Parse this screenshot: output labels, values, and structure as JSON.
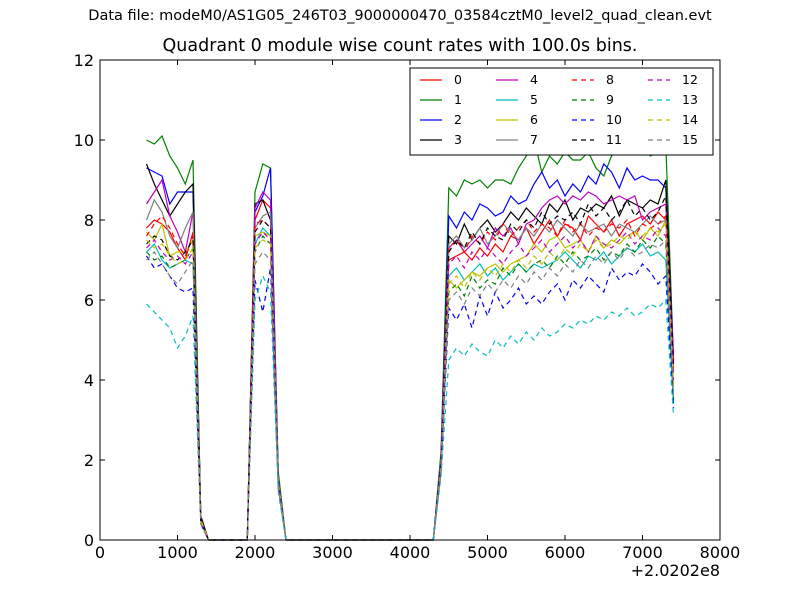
{
  "figure": {
    "suptitle": "Data file: modeM0/AS1G05_246T03_9000000470_03584cztM0_level2_quad_clean.evt",
    "title": "Quadrant 0 module wise count rates with 100.0s bins.",
    "x_offset_label": "+2.0202e8"
  },
  "chart_data": {
    "type": "line",
    "title": "Quadrant 0 module wise count rates with 100.0s bins.",
    "xlabel": "",
    "ylabel": "",
    "xlim": [
      0,
      8000
    ],
    "ylim": [
      0,
      12
    ],
    "x_ticks": [
      "0",
      "1000",
      "2000",
      "3000",
      "4000",
      "5000",
      "6000",
      "7000",
      "8000"
    ],
    "y_ticks": [
      "0",
      "2",
      "4",
      "6",
      "8",
      "10",
      "12"
    ],
    "x_offset": "+2.0202e8",
    "grid": false,
    "legend_position": "top-right",
    "x": [
      600,
      700,
      800,
      900,
      1000,
      1100,
      1200,
      1300,
      1400,
      1500,
      1600,
      1700,
      1800,
      1900,
      2000,
      2100,
      2200,
      2300,
      2400,
      2500,
      2600,
      2700,
      2800,
      2900,
      3000,
      3100,
      3200,
      3300,
      3400,
      3500,
      3600,
      3700,
      3800,
      3900,
      4000,
      4100,
      4200,
      4300,
      4400,
      4500,
      4600,
      4700,
      4800,
      4900,
      5000,
      5100,
      5200,
      5300,
      5400,
      5500,
      5600,
      5700,
      5800,
      5900,
      6000,
      6100,
      6200,
      6300,
      6400,
      6500,
      6600,
      6700,
      6800,
      6900,
      7000,
      7100,
      7200,
      7300,
      7400
    ],
    "series": [
      {
        "name": "0",
        "color": "#ff0000",
        "style": "solid",
        "values": [
          7.8,
          8.0,
          7.9,
          7.7,
          7.3,
          7.0,
          7.7,
          0.6,
          0,
          0,
          0,
          0,
          0,
          0,
          8.0,
          8.5,
          8.3,
          1.5,
          0,
          0,
          0,
          0,
          0,
          0,
          0,
          0,
          0,
          0,
          0,
          0,
          0,
          0,
          0,
          0,
          0,
          0,
          0,
          0,
          1.8,
          7.0,
          7.1,
          7.2,
          7.0,
          7.3,
          7.1,
          7.4,
          7.2,
          7.6,
          7.5,
          7.8,
          7.4,
          7.7,
          8.0,
          7.6,
          7.9,
          7.8,
          7.5,
          8.1,
          7.9,
          7.7,
          8.0,
          7.6,
          7.9,
          8.0,
          8.1,
          7.9,
          8.2,
          8.0,
          4.5
        ]
      },
      {
        "name": "1",
        "color": "#008000",
        "style": "solid",
        "values": [
          10.0,
          9.9,
          10.1,
          9.6,
          9.3,
          8.9,
          9.5,
          0.5,
          0,
          0,
          0,
          0,
          0,
          0,
          8.7,
          9.4,
          9.3,
          1.7,
          0,
          0,
          0,
          0,
          0,
          0,
          0,
          0,
          0,
          0,
          0,
          0,
          0,
          0,
          0,
          0,
          0,
          0,
          0,
          0,
          2.2,
          8.8,
          8.6,
          9.0,
          8.9,
          9.0,
          8.8,
          9.0,
          9.0,
          8.9,
          9.3,
          9.6,
          10.0,
          9.2,
          9.6,
          9.4,
          9.7,
          9.5,
          9.5,
          9.7,
          9.3,
          9.1,
          9.6,
          9.8,
          10.1,
          9.7,
          9.8,
          9.6,
          9.7,
          9.9,
          4.5
        ]
      },
      {
        "name": "2",
        "color": "#0000ff",
        "style": "solid",
        "values": [
          9.3,
          9.2,
          9.1,
          8.4,
          8.7,
          8.7,
          8.7,
          0.5,
          0,
          0,
          0,
          0,
          0,
          0,
          8.2,
          8.6,
          9.3,
          1.5,
          0,
          0,
          0,
          0,
          0,
          0,
          0,
          0,
          0,
          0,
          0,
          0,
          0,
          0,
          0,
          0,
          0,
          0,
          0,
          0,
          2.0,
          8.1,
          7.8,
          8.2,
          8.0,
          8.4,
          8.3,
          8.1,
          8.2,
          8.6,
          8.4,
          8.5,
          8.9,
          9.2,
          8.8,
          9.0,
          8.6,
          8.9,
          8.7,
          9.1,
          8.9,
          9.4,
          9.2,
          8.8,
          9.3,
          9.0,
          9.1,
          9.0,
          9.0,
          8.8,
          4.6
        ]
      },
      {
        "name": "3",
        "color": "#000000",
        "style": "solid",
        "values": [
          9.4,
          8.9,
          8.5,
          8.1,
          8.4,
          8.7,
          8.9,
          0.6,
          0,
          0,
          0,
          0,
          0,
          0,
          8.4,
          8.5,
          8.0,
          1.4,
          0,
          0,
          0,
          0,
          0,
          0,
          0,
          0,
          0,
          0,
          0,
          0,
          0,
          0,
          0,
          0,
          0,
          0,
          0,
          0,
          2.0,
          7.6,
          7.4,
          7.9,
          7.5,
          7.8,
          8.0,
          7.7,
          7.9,
          8.2,
          8.0,
          8.3,
          8.1,
          7.9,
          8.4,
          8.2,
          8.5,
          8.0,
          8.3,
          8.2,
          8.4,
          8.3,
          8.6,
          8.1,
          8.5,
          8.4,
          8.3,
          8.5,
          8.4,
          9.0,
          4.4
        ]
      },
      {
        "name": "4",
        "color": "#bf00bf",
        "style": "solid",
        "values": [
          8.4,
          8.7,
          9.0,
          8.1,
          7.7,
          7.2,
          8.2,
          0.5,
          0,
          0,
          0,
          0,
          0,
          0,
          8.3,
          8.7,
          8.5,
          1.5,
          0,
          0,
          0,
          0,
          0,
          0,
          0,
          0,
          0,
          0,
          0,
          0,
          0,
          0,
          0,
          0,
          0,
          0,
          0,
          0,
          2.0,
          7.3,
          7.5,
          7.2,
          7.4,
          7.6,
          7.3,
          7.8,
          7.6,
          7.8,
          7.4,
          7.9,
          8.0,
          8.3,
          8.5,
          8.6,
          8.4,
          8.6,
          8.5,
          8.7,
          8.6,
          8.4,
          8.5,
          8.6,
          8.5,
          8.6,
          8.0,
          8.2,
          8.3,
          8.4,
          4.5
        ]
      },
      {
        "name": "5",
        "color": "#00bfbf",
        "style": "solid",
        "values": [
          7.2,
          7.4,
          7.0,
          6.8,
          6.9,
          7.0,
          6.9,
          0.5,
          0,
          0,
          0,
          0,
          0,
          0,
          7.4,
          7.8,
          7.6,
          1.4,
          0,
          0,
          0,
          0,
          0,
          0,
          0,
          0,
          0,
          0,
          0,
          0,
          0,
          0,
          0,
          0,
          0,
          0,
          0,
          0,
          1.8,
          6.6,
          6.8,
          6.5,
          6.7,
          6.9,
          6.6,
          6.8,
          6.5,
          6.7,
          6.9,
          6.7,
          6.9,
          6.8,
          6.9,
          7.0,
          7.2,
          7.0,
          6.8,
          7.1,
          7.0,
          7.2,
          6.9,
          7.1,
          7.3,
          7.2,
          7.4,
          7.1,
          7.2,
          7.0,
          3.4
        ]
      },
      {
        "name": "6",
        "color": "#bfbf00",
        "style": "solid",
        "values": [
          7.7,
          7.5,
          7.9,
          7.1,
          7.2,
          7.2,
          7.5,
          0.5,
          0,
          0,
          0,
          0,
          0,
          0,
          7.6,
          7.7,
          7.6,
          1.4,
          0,
          0,
          0,
          0,
          0,
          0,
          0,
          0,
          0,
          0,
          0,
          0,
          0,
          0,
          0,
          0,
          0,
          0,
          0,
          0,
          1.8,
          6.5,
          6.3,
          6.5,
          6.7,
          6.6,
          6.8,
          6.9,
          6.7,
          6.9,
          7.0,
          7.1,
          7.4,
          7.2,
          7.5,
          7.6,
          7.3,
          7.4,
          7.5,
          7.2,
          7.6,
          7.3,
          7.5,
          7.4,
          7.6,
          7.7,
          7.5,
          7.8,
          7.6,
          8.0,
          3.9
        ]
      },
      {
        "name": "7",
        "color": "#808080",
        "style": "solid",
        "values": [
          8.0,
          8.5,
          8.2,
          7.6,
          7.3,
          7.8,
          8.2,
          0.5,
          0,
          0,
          0,
          0,
          0,
          0,
          7.8,
          8.1,
          8.2,
          1.4,
          0,
          0,
          0,
          0,
          0,
          0,
          0,
          0,
          0,
          0,
          0,
          0,
          0,
          0,
          0,
          0,
          0,
          0,
          0,
          0,
          1.9,
          7.4,
          7.6,
          7.3,
          7.5,
          7.8,
          7.4,
          7.6,
          7.9,
          7.7,
          7.5,
          7.8,
          7.6,
          7.9,
          7.7,
          8.0,
          7.8,
          7.6,
          7.9,
          7.7,
          7.8,
          7.9,
          7.6,
          7.9,
          7.8,
          7.7,
          7.9,
          8.1,
          7.9,
          8.0,
          4.2
        ]
      },
      {
        "name": "8",
        "color": "#ff0000",
        "style": "dashed",
        "values": [
          7.6,
          7.9,
          8.1,
          7.8,
          7.4,
          7.1,
          7.6,
          0.5,
          0,
          0,
          0,
          0,
          0,
          0,
          7.9,
          8.0,
          7.8,
          1.4,
          0,
          0,
          0,
          0,
          0,
          0,
          0,
          0,
          0,
          0,
          0,
          0,
          0,
          0,
          0,
          0,
          0,
          0,
          0,
          0,
          1.8,
          7.3,
          7.5,
          7.2,
          7.6,
          7.4,
          7.7,
          7.5,
          7.9,
          7.6,
          7.8,
          8.0,
          7.7,
          7.9,
          7.8,
          7.6,
          8.0,
          7.7,
          7.9,
          7.6,
          7.8,
          7.7,
          7.9,
          7.8,
          8.0,
          7.6,
          7.9,
          7.8,
          7.9,
          8.1,
          4.3
        ]
      },
      {
        "name": "9",
        "color": "#008000",
        "style": "dashed",
        "values": [
          7.2,
          7.0,
          7.1,
          6.8,
          6.9,
          7.0,
          7.3,
          0.5,
          0,
          0,
          0,
          0,
          0,
          0,
          7.2,
          7.6,
          7.4,
          1.4,
          0,
          0,
          0,
          0,
          0,
          0,
          0,
          0,
          0,
          0,
          0,
          0,
          0,
          0,
          0,
          0,
          0,
          0,
          0,
          0,
          1.8,
          6.2,
          6.4,
          6.1,
          6.6,
          6.3,
          6.5,
          6.4,
          6.8,
          6.6,
          6.9,
          6.7,
          6.9,
          7.0,
          6.8,
          7.1,
          6.9,
          7.2,
          7.0,
          7.1,
          7.3,
          7.0,
          7.2,
          7.1,
          7.4,
          7.2,
          7.5,
          7.3,
          7.6,
          7.4,
          3.5
        ]
      },
      {
        "name": "10",
        "color": "#0000ff",
        "style": "dashed",
        "values": [
          7.1,
          6.8,
          6.9,
          6.6,
          6.3,
          6.2,
          6.3,
          0.4,
          0,
          0,
          0,
          0,
          0,
          0,
          6.5,
          5.7,
          6.8,
          1.3,
          0,
          0,
          0,
          0,
          0,
          0,
          0,
          0,
          0,
          0,
          0,
          0,
          0,
          0,
          0,
          0,
          0,
          0,
          0,
          0,
          1.7,
          5.8,
          5.5,
          5.9,
          5.3,
          6.1,
          5.6,
          6.2,
          5.8,
          6.0,
          6.3,
          5.9,
          6.1,
          5.9,
          6.2,
          6.4,
          6.0,
          6.5,
          6.3,
          6.6,
          6.4,
          6.2,
          6.8,
          6.5,
          6.7,
          6.6,
          6.9,
          6.7,
          6.4,
          6.6,
          3.3
        ]
      },
      {
        "name": "11",
        "color": "#000000",
        "style": "dashed",
        "values": [
          7.4,
          7.6,
          7.5,
          7.1,
          7.0,
          7.2,
          7.5,
          0.5,
          0,
          0,
          0,
          0,
          0,
          0,
          7.7,
          8.0,
          7.8,
          1.4,
          0,
          0,
          0,
          0,
          0,
          0,
          0,
          0,
          0,
          0,
          0,
          0,
          0,
          0,
          0,
          0,
          0,
          0,
          0,
          0,
          1.9,
          7.2,
          7.5,
          7.3,
          7.7,
          7.4,
          7.8,
          7.6,
          7.5,
          7.9,
          7.7,
          8.0,
          7.8,
          8.2,
          7.9,
          8.1,
          8.0,
          8.2,
          7.9,
          8.4,
          8.1,
          8.3,
          8.0,
          8.2,
          8.5,
          8.1,
          8.3,
          8.0,
          8.2,
          8.6,
          4.3
        ]
      },
      {
        "name": "12",
        "color": "#bf00bf",
        "style": "dashed",
        "values": [
          7.3,
          7.5,
          7.2,
          7.0,
          7.1,
          6.9,
          7.2,
          0.5,
          0,
          0,
          0,
          0,
          0,
          0,
          7.4,
          7.7,
          7.5,
          1.4,
          0,
          0,
          0,
          0,
          0,
          0,
          0,
          0,
          0,
          0,
          0,
          0,
          0,
          0,
          0,
          0,
          0,
          0,
          0,
          0,
          1.8,
          6.9,
          7.1,
          6.8,
          7.2,
          7.0,
          7.3,
          7.1,
          6.9,
          7.2,
          7.4,
          7.1,
          7.3,
          7.5,
          7.2,
          7.4,
          7.6,
          7.3,
          7.5,
          7.2,
          7.6,
          7.4,
          7.3,
          7.5,
          7.7,
          7.4,
          7.6,
          7.5,
          7.8,
          7.6,
          4.0
        ]
      },
      {
        "name": "13",
        "color": "#00bfbf",
        "style": "dashed",
        "values": [
          5.9,
          5.7,
          5.5,
          5.3,
          4.8,
          5.1,
          5.6,
          0.4,
          0,
          0,
          0,
          0,
          0,
          0,
          6.0,
          6.6,
          6.2,
          1.2,
          0,
          0,
          0,
          0,
          0,
          0,
          0,
          0,
          0,
          0,
          0,
          0,
          0,
          0,
          0,
          0,
          0,
          0,
          0,
          0,
          1.6,
          4.5,
          4.8,
          4.6,
          4.9,
          4.7,
          4.6,
          5.0,
          4.8,
          5.1,
          4.9,
          5.2,
          5.0,
          5.3,
          5.1,
          5.2,
          5.4,
          5.3,
          5.5,
          5.4,
          5.6,
          5.5,
          5.7,
          5.6,
          5.8,
          5.6,
          5.7,
          5.9,
          5.8,
          6.0,
          3.1
        ]
      },
      {
        "name": "14",
        "color": "#bfbf00",
        "style": "dashed",
        "values": [
          7.5,
          7.3,
          7.4,
          7.1,
          6.9,
          7.0,
          7.3,
          0.5,
          0,
          0,
          0,
          0,
          0,
          0,
          7.3,
          7.5,
          7.4,
          1.4,
          0,
          0,
          0,
          0,
          0,
          0,
          0,
          0,
          0,
          0,
          0,
          0,
          0,
          0,
          0,
          0,
          0,
          0,
          0,
          0,
          1.8,
          6.4,
          6.6,
          6.3,
          6.7,
          6.5,
          6.8,
          6.6,
          6.9,
          6.7,
          7.0,
          6.8,
          7.1,
          6.9,
          7.2,
          7.0,
          7.3,
          7.1,
          7.4,
          7.2,
          7.5,
          7.3,
          7.4,
          7.6,
          7.5,
          7.7,
          7.6,
          7.8,
          7.7,
          7.9,
          3.8
        ]
      },
      {
        "name": "15",
        "color": "#808080",
        "style": "dashed",
        "values": [
          7.0,
          7.2,
          6.9,
          6.6,
          6.4,
          6.7,
          7.0,
          0.4,
          0,
          0,
          0,
          0,
          0,
          0,
          6.9,
          7.2,
          7.0,
          1.3,
          0,
          0,
          0,
          0,
          0,
          0,
          0,
          0,
          0,
          0,
          0,
          0,
          0,
          0,
          0,
          0,
          0,
          0,
          0,
          0,
          1.7,
          6.0,
          6.2,
          5.9,
          6.3,
          6.1,
          6.4,
          6.2,
          6.5,
          6.3,
          6.6,
          6.4,
          6.7,
          6.5,
          6.8,
          6.6,
          6.9,
          6.7,
          7.0,
          6.8,
          7.1,
          6.9,
          7.2,
          7.0,
          7.3,
          7.1,
          7.2,
          7.4,
          7.3,
          7.5,
          3.6
        ]
      }
    ]
  }
}
